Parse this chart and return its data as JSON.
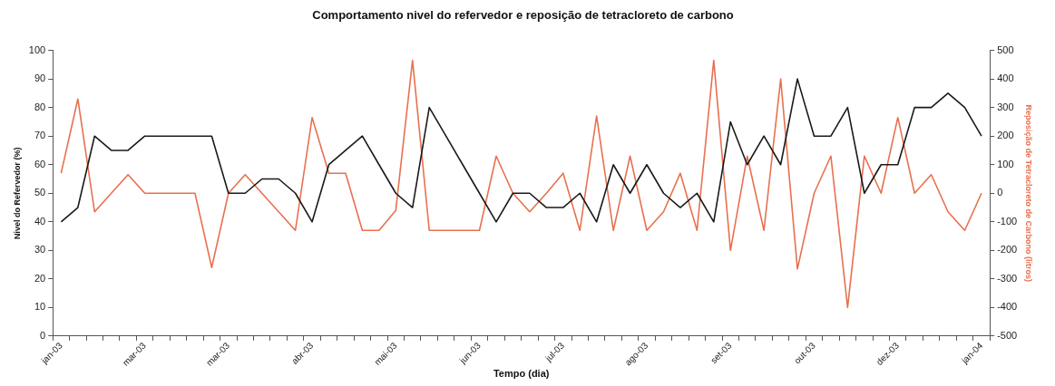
{
  "chart_data": {
    "type": "line",
    "title": "Comportamento nivel do refervedor e reposição de tetracloreto de carbono",
    "xlabel": "Tempo (dia)",
    "ylabel": "Nivel do Refervedor (%)",
    "y2label": "Reposição de Tetracloreto de Carbono (litros)",
    "categories": [
      "jan-03",
      null,
      null,
      null,
      null,
      "mar-03",
      null,
      null,
      null,
      null,
      "mar-03",
      null,
      null,
      null,
      null,
      "abr-03",
      null,
      null,
      null,
      null,
      "mai-03",
      null,
      null,
      null,
      null,
      "jun-03",
      null,
      null,
      null,
      null,
      "jul-03",
      null,
      null,
      null,
      null,
      "ago-03",
      null,
      null,
      null,
      null,
      "set-03",
      null,
      null,
      null,
      null,
      "out-03",
      null,
      null,
      null,
      null,
      "dez-03",
      null,
      null,
      null,
      null,
      "jan-04"
    ],
    "series": [
      {
        "color": "#1a1a1a",
        "values": [
          40,
          45,
          70,
          65,
          65,
          70,
          70,
          70,
          70,
          70,
          50,
          50,
          55,
          55,
          50,
          40,
          60,
          65,
          70,
          60,
          50,
          45,
          80,
          70,
          60,
          50,
          40,
          50,
          50,
          45,
          45,
          50,
          40,
          60,
          50,
          60,
          50,
          45,
          50,
          40,
          75,
          60,
          70,
          60,
          90,
          70,
          70,
          80,
          50,
          60,
          60,
          80,
          80,
          85,
          80,
          70
        ]
      },
      {
        "color": "#e8704f",
        "axis": "y2",
        "values": [
          70,
          330,
          -65,
          0,
          65,
          0,
          0,
          0,
          0,
          -260,
          0,
          65,
          0,
          -65,
          -130,
          265,
          70,
          70,
          -130,
          -130,
          -60,
          465,
          -130,
          -130,
          -130,
          -130,
          130,
          0,
          -65,
          0,
          70,
          -130,
          270,
          -130,
          130,
          -130,
          -65,
          70,
          -130,
          465,
          -200,
          130,
          -130,
          400,
          -265,
          0,
          130,
          -400,
          130,
          0,
          265,
          0,
          65,
          -65,
          -130,
          0
        ]
      }
    ],
    "ylim": [
      0,
      100
    ],
    "yticks": [
      0,
      10,
      20,
      30,
      40,
      50,
      60,
      70,
      80,
      90,
      100
    ],
    "y2lim": [
      -500,
      500
    ],
    "y2ticks": [
      -500,
      -400,
      -300,
      -200,
      -100,
      0,
      100,
      200,
      300,
      400,
      500
    ],
    "marker": "none"
  }
}
